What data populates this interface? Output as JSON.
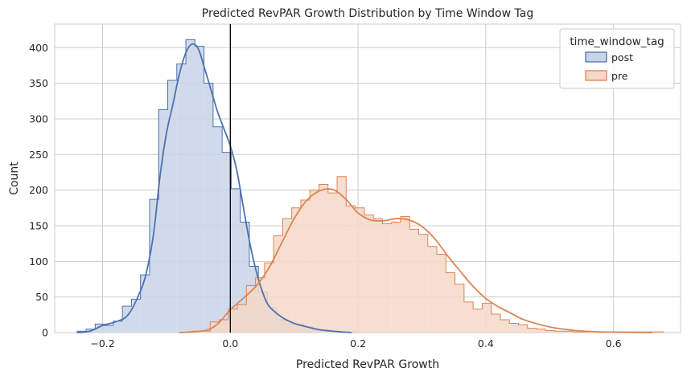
{
  "chart_data": {
    "type": "histogram",
    "title": "Predicted RevPAR Growth Distribution by Time Window Tag",
    "xlabel": "Predicted RevPAR Growth",
    "ylabel": "Count",
    "xlim": [
      -0.275,
      0.705
    ],
    "ylim": [
      0,
      433
    ],
    "x_ticks": [
      -0.2,
      0.0,
      0.2,
      0.4,
      0.6
    ],
    "x_tick_labels": [
      "−0.2",
      "0.0",
      "0.2",
      "0.4",
      "0.6"
    ],
    "y_ticks": [
      0,
      50,
      100,
      150,
      200,
      250,
      300,
      350,
      400
    ],
    "grid": true,
    "reference_line_x": 0.0,
    "legend": {
      "title": "time_window_tag",
      "placement": "top-right"
    },
    "series": [
      {
        "name": "post",
        "color": "#4c72b0",
        "fill": "#c9d3e8",
        "bin_width": 0.0142,
        "bins_start": [
          -0.24,
          -0.2258,
          -0.2116,
          -0.1974,
          -0.1832,
          -0.169,
          -0.1548,
          -0.1406,
          -0.1264,
          -0.1122,
          -0.098,
          -0.0838,
          -0.0696,
          -0.0554,
          -0.0412,
          -0.027,
          -0.0128,
          0.0014,
          0.0156,
          0.0298,
          0.044,
          0.0582,
          0.0724,
          0.0866,
          0.1008,
          0.115,
          0.1292,
          0.1434,
          0.1576,
          0.1718,
          0.186
        ],
        "counts": [
          2,
          5,
          12,
          10,
          16,
          37,
          47,
          81,
          187,
          313,
          354,
          377,
          411,
          402,
          350,
          289,
          253,
          202,
          155,
          93,
          57,
          35,
          18,
          12,
          12,
          8,
          3,
          4,
          2,
          1,
          1
        ],
        "kde_x": [
          -0.24,
          -0.22,
          -0.2,
          -0.18,
          -0.16,
          -0.14,
          -0.13,
          -0.12,
          -0.11,
          -0.1,
          -0.09,
          -0.08,
          -0.07,
          -0.06,
          -0.05,
          -0.04,
          -0.03,
          -0.02,
          -0.01,
          0.0,
          0.01,
          0.02,
          0.03,
          0.04,
          0.05,
          0.06,
          0.08,
          0.1,
          0.12,
          0.14,
          0.16,
          0.19
        ],
        "kde_y": [
          0,
          2,
          10,
          15,
          25,
          60,
          90,
          140,
          220,
          280,
          320,
          362,
          392,
          405,
          398,
          370,
          340,
          310,
          286,
          262,
          228,
          178,
          128,
          88,
          58,
          38,
          22,
          13,
          8,
          4,
          2,
          0
        ]
      },
      {
        "name": "pre",
        "color": "#dd8452",
        "fill": "#f5d8c8",
        "bin_width": 0.0142,
        "bins_start": [
          -0.06,
          -0.0458,
          -0.0316,
          -0.0174,
          -0.0032,
          0.011,
          0.0252,
          0.0394,
          0.0536,
          0.0678,
          0.082,
          0.0962,
          0.1104,
          0.1246,
          0.1388,
          0.153,
          0.1672,
          0.1814,
          0.1956,
          0.2098,
          0.224,
          0.2382,
          0.2524,
          0.2666,
          0.2808,
          0.295,
          0.3092,
          0.3234,
          0.3376,
          0.3518,
          0.366,
          0.3802,
          0.3944,
          0.4086,
          0.4228,
          0.437,
          0.4512,
          0.4654,
          0.4796,
          0.4938,
          0.508,
          0.5222,
          0.5364,
          0.5506,
          0.5648,
          0.579,
          0.5932,
          0.6074,
          0.6216,
          0.6358,
          0.65,
          0.6642
        ],
        "counts": [
          2,
          2,
          15,
          18,
          33,
          39,
          66,
          77,
          98,
          136,
          160,
          175,
          186,
          200,
          208,
          196,
          219,
          178,
          175,
          165,
          160,
          153,
          155,
          163,
          145,
          138,
          121,
          110,
          84,
          68,
          43,
          33,
          41,
          26,
          18,
          13,
          11,
          6,
          5,
          3,
          2,
          2,
          1,
          1,
          1,
          1,
          1,
          1,
          1,
          1,
          1,
          1
        ],
        "kde_x": [
          -0.08,
          -0.04,
          -0.02,
          0.0,
          0.02,
          0.04,
          0.06,
          0.08,
          0.1,
          0.12,
          0.14,
          0.16,
          0.18,
          0.2,
          0.22,
          0.24,
          0.26,
          0.28,
          0.3,
          0.32,
          0.34,
          0.36,
          0.38,
          0.4,
          0.42,
          0.44,
          0.46,
          0.5,
          0.54,
          0.58,
          0.62,
          0.66
        ],
        "kde_y": [
          0,
          3,
          12,
          32,
          48,
          65,
          90,
          125,
          160,
          186,
          199,
          201,
          188,
          168,
          158,
          157,
          160,
          158,
          149,
          132,
          108,
          86,
          65,
          48,
          36,
          27,
          18,
          8,
          3,
          1,
          0.5,
          0
        ]
      }
    ]
  }
}
